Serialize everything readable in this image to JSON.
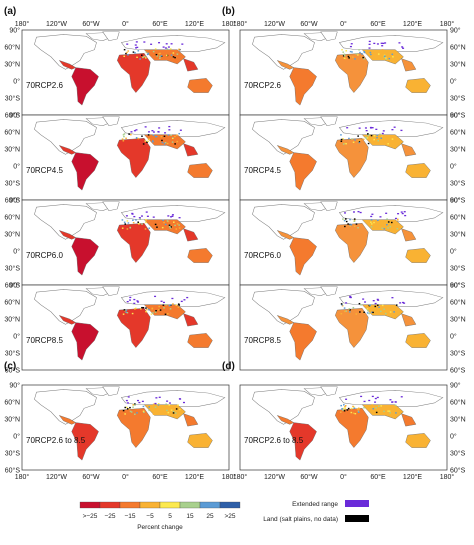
{
  "panel_letters": [
    "(a)",
    "(b)",
    "(c)",
    "(d)"
  ],
  "lon_ticks": [
    "180°",
    "120°W",
    "60°W",
    "0°",
    "60°E",
    "120°E",
    "180°"
  ],
  "lat_ticks_left": [
    "90°",
    "60°N",
    "30°N",
    "0°",
    "30°S",
    "60°S"
  ],
  "lat_ticks_right": [
    "90°",
    "60°N",
    "30°N",
    "0°",
    "30°S",
    "60°S"
  ],
  "panels": [
    {
      "letter": "(a)",
      "scenario": "70RCP2.6",
      "tone": "strong"
    },
    {
      "letter": "(b)",
      "scenario": "70RCP2.6",
      "tone": "mild"
    },
    {
      "letter": "",
      "scenario": "70RCP4.5",
      "tone": "strong"
    },
    {
      "letter": "",
      "scenario": "70RCP4.5",
      "tone": "mild"
    },
    {
      "letter": "",
      "scenario": "70RCP6.0",
      "tone": "strong"
    },
    {
      "letter": "",
      "scenario": "70RCP6.0",
      "tone": "mild"
    },
    {
      "letter": "",
      "scenario": "70RCP8.5",
      "tone": "strong"
    },
    {
      "letter": "",
      "scenario": "70RCP8.5",
      "tone": "mild"
    },
    {
      "letter": "(c)",
      "scenario": "70RCP2.6 to 8.5",
      "tone": "ens"
    },
    {
      "letter": "(d)",
      "scenario": "70RCP2.6 to 8.5",
      "tone": "ens"
    }
  ],
  "colorbar": {
    "labels": [
      ">−25",
      "−25",
      "−15",
      "−5",
      "5",
      "15",
      "25",
      ">25"
    ],
    "colors": [
      "#c8102e",
      "#e4382a",
      "#f47a2e",
      "#f9b233",
      "#fce94f",
      "#a8d08d",
      "#5b9bd5",
      "#2e5fa8"
    ],
    "title": "Percent change"
  },
  "legend": {
    "extended_range": "Extended range",
    "extended_color": "#6a2bd9",
    "land_label": "Land (salt plains, no data)",
    "land_color": "#000000"
  },
  "colors": {
    "strong": [
      "#c8102e",
      "#e4382a",
      "#f47a2e"
    ],
    "mild": [
      "#f47a2e",
      "#f5923b",
      "#f9b233"
    ],
    "ens": [
      "#e4382a",
      "#f47a2e",
      "#f9b233"
    ],
    "ocean_outline": "#888888"
  }
}
